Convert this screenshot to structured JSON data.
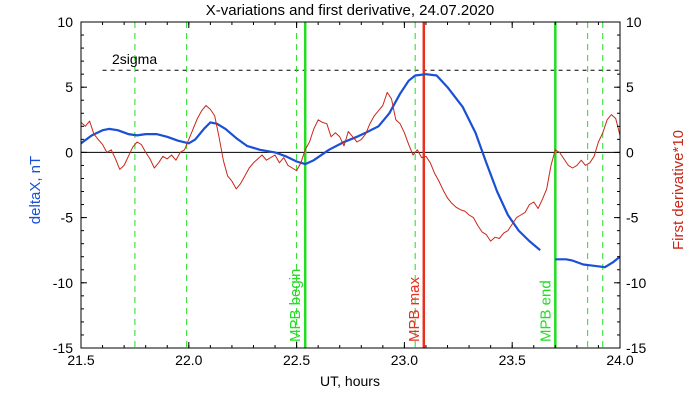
{
  "chart_data": {
    "type": "line",
    "title": "X-variations and first derivative, 24.07.2020",
    "xlabel": "UT, hours",
    "ylabel_left": "deltaX, nT",
    "ylabel_right": "First derivative*10",
    "xlim": [
      21.5,
      24.0
    ],
    "ylim": [
      -15,
      10
    ],
    "x_ticks": [
      {
        "value": 21.5,
        "label": "21.5"
      },
      {
        "value": 22.0,
        "label": "22.0"
      },
      {
        "value": 22.5,
        "label": "22.5"
      },
      {
        "value": 23.0,
        "label": "23.0"
      },
      {
        "value": 23.5,
        "label": "23.5"
      },
      {
        "value": 24.0,
        "label": "24.0"
      }
    ],
    "y_ticks": [
      {
        "value": 10,
        "label": "10"
      },
      {
        "value": 5,
        "label": "5"
      },
      {
        "value": 0,
        "label": "0"
      },
      {
        "value": -5,
        "label": "-5"
      },
      {
        "value": -10,
        "label": "-10"
      },
      {
        "value": -15,
        "label": "-15"
      }
    ],
    "sigma_line": {
      "label": "2sigma",
      "value": 6.3,
      "x_start": 21.6
    },
    "zero_line": 0,
    "vertical_markers": [
      {
        "x": 22.54,
        "label": "MPB begin",
        "color": "#22dd22"
      },
      {
        "x": 23.09,
        "label": "MPB max",
        "color": "#e8301e"
      },
      {
        "x": 23.7,
        "label": "MPB end",
        "color": "#22dd22"
      }
    ],
    "dashed_verticals": [
      21.75,
      21.99,
      22.5,
      23.05,
      23.85,
      23.92
    ],
    "colors": {
      "deltaX": "#1a4fd6",
      "derivative": "#c8281a",
      "green": "#22dd22",
      "red": "#e8301e"
    },
    "series": [
      {
        "color": "#1a4fd6",
        "segments": [
          [
            [
              21.5,
              0.7
            ],
            [
              21.55,
              1.3
            ],
            [
              21.6,
              1.7
            ],
            [
              21.63,
              1.8
            ],
            [
              21.67,
              1.7
            ],
            [
              21.72,
              1.4
            ],
            [
              21.76,
              1.3
            ],
            [
              21.8,
              1.4
            ],
            [
              21.85,
              1.4
            ],
            [
              21.9,
              1.2
            ],
            [
              21.95,
              0.9
            ],
            [
              22.0,
              0.7
            ],
            [
              22.03,
              1.0
            ],
            [
              22.07,
              1.8
            ],
            [
              22.1,
              2.3
            ],
            [
              22.13,
              2.2
            ],
            [
              22.17,
              1.8
            ],
            [
              22.22,
              1.1
            ],
            [
              22.27,
              0.5
            ],
            [
              22.33,
              0.2
            ],
            [
              22.4,
              0.0
            ],
            [
              22.45,
              -0.3
            ],
            [
              22.5,
              -0.7
            ],
            [
              22.54,
              -0.9
            ],
            [
              22.58,
              -0.6
            ],
            [
              22.65,
              0.2
            ],
            [
              22.72,
              0.8
            ],
            [
              22.78,
              1.2
            ],
            [
              22.82,
              1.5
            ],
            [
              22.88,
              2.0
            ],
            [
              22.93,
              3.0
            ],
            [
              22.98,
              4.5
            ],
            [
              23.02,
              5.5
            ],
            [
              23.05,
              5.9
            ],
            [
              23.1,
              6.0
            ],
            [
              23.15,
              5.9
            ],
            [
              23.2,
              5.0
            ],
            [
              23.27,
              3.5
            ],
            [
              23.33,
              1.5
            ],
            [
              23.38,
              -0.8
            ],
            [
              23.43,
              -3.0
            ],
            [
              23.48,
              -4.8
            ],
            [
              23.53,
              -6.0
            ],
            [
              23.58,
              -6.8
            ],
            [
              23.63,
              -7.5
            ]
          ],
          [
            [
              23.7,
              -8.2
            ],
            [
              23.75,
              -8.2
            ],
            [
              23.78,
              -8.3
            ],
            [
              23.83,
              -8.6
            ],
            [
              23.88,
              -8.7
            ],
            [
              23.93,
              -8.8
            ],
            [
              23.97,
              -8.4
            ],
            [
              24.0,
              -8.0
            ]
          ]
        ]
      },
      {
        "color": "#c8281a",
        "segments": [
          [
            [
              21.5,
              2.3
            ],
            [
              21.52,
              2.0
            ],
            [
              21.54,
              2.4
            ],
            [
              21.56,
              1.4
            ],
            [
              21.58,
              1.0
            ],
            [
              21.6,
              0.6
            ],
            [
              21.62,
              0.0
            ],
            [
              21.64,
              0.2
            ],
            [
              21.66,
              -0.5
            ],
            [
              21.68,
              -1.3
            ],
            [
              21.7,
              -1.0
            ],
            [
              21.72,
              -0.3
            ],
            [
              21.74,
              0.4
            ],
            [
              21.76,
              0.8
            ],
            [
              21.78,
              0.6
            ],
            [
              21.8,
              0.0
            ],
            [
              21.82,
              -0.5
            ],
            [
              21.84,
              -1.2
            ],
            [
              21.86,
              -0.8
            ],
            [
              21.88,
              -0.3
            ],
            [
              21.9,
              -0.5
            ],
            [
              21.92,
              -0.2
            ],
            [
              21.94,
              -0.6
            ],
            [
              21.96,
              0.0
            ],
            [
              21.98,
              0.2
            ],
            [
              22.0,
              1.0
            ],
            [
              22.02,
              1.8
            ],
            [
              22.04,
              2.6
            ],
            [
              22.06,
              3.2
            ],
            [
              22.08,
              3.6
            ],
            [
              22.1,
              3.3
            ],
            [
              22.12,
              2.8
            ],
            [
              22.14,
              1.2
            ],
            [
              22.16,
              -0.6
            ],
            [
              22.18,
              -1.8
            ],
            [
              22.2,
              -2.2
            ],
            [
              22.22,
              -2.8
            ],
            [
              22.24,
              -2.4
            ],
            [
              22.26,
              -1.8
            ],
            [
              22.28,
              -1.2
            ],
            [
              22.3,
              -0.8
            ],
            [
              22.32,
              -0.5
            ],
            [
              22.34,
              -0.2
            ],
            [
              22.36,
              -0.6
            ],
            [
              22.38,
              -0.4
            ],
            [
              22.4,
              -0.2
            ],
            [
              22.42,
              -0.8
            ],
            [
              22.44,
              -0.4
            ],
            [
              22.46,
              -1.0
            ],
            [
              22.48,
              -1.2
            ],
            [
              22.5,
              -1.4
            ],
            [
              22.52,
              -0.8
            ],
            [
              22.54,
              0.2
            ],
            [
              22.56,
              0.8
            ],
            [
              22.58,
              1.8
            ],
            [
              22.6,
              2.5
            ],
            [
              22.62,
              2.3
            ],
            [
              22.64,
              2.2
            ],
            [
              22.66,
              1.2
            ],
            [
              22.68,
              1.5
            ],
            [
              22.7,
              1.2
            ],
            [
              22.72,
              0.5
            ],
            [
              22.74,
              1.6
            ],
            [
              22.76,
              1.2
            ],
            [
              22.78,
              0.8
            ],
            [
              22.8,
              1.0
            ],
            [
              22.82,
              1.4
            ],
            [
              22.84,
              2.2
            ],
            [
              22.86,
              2.8
            ],
            [
              22.88,
              3.2
            ],
            [
              22.9,
              3.6
            ],
            [
              22.92,
              4.6
            ],
            [
              22.94,
              4.1
            ],
            [
              22.96,
              2.5
            ],
            [
              22.98,
              2.2
            ],
            [
              23.0,
              1.5
            ],
            [
              23.02,
              0.6
            ],
            [
              23.04,
              -0.2
            ],
            [
              23.06,
              0.2
            ],
            [
              23.08,
              -0.4
            ],
            [
              23.1,
              -0.3
            ],
            [
              23.12,
              -0.8
            ],
            [
              23.14,
              -1.6
            ],
            [
              23.16,
              -2.2
            ],
            [
              23.18,
              -2.9
            ],
            [
              23.2,
              -3.5
            ],
            [
              23.22,
              -3.9
            ],
            [
              23.24,
              -4.2
            ],
            [
              23.26,
              -4.4
            ],
            [
              23.28,
              -4.5
            ],
            [
              23.3,
              -4.8
            ],
            [
              23.32,
              -5.0
            ],
            [
              23.34,
              -5.6
            ],
            [
              23.36,
              -6.1
            ],
            [
              23.38,
              -6.3
            ],
            [
              23.4,
              -6.8
            ],
            [
              23.42,
              -6.5
            ],
            [
              23.44,
              -6.6
            ],
            [
              23.46,
              -6.2
            ],
            [
              23.48,
              -6.0
            ],
            [
              23.5,
              -5.5
            ],
            [
              23.52,
              -5.0
            ],
            [
              23.54,
              -4.8
            ],
            [
              23.56,
              -4.6
            ],
            [
              23.58,
              -4.0
            ],
            [
              23.6,
              -3.8
            ],
            [
              23.62,
              -4.3
            ],
            [
              23.64,
              -3.6
            ],
            [
              23.66,
              -2.8
            ],
            [
              23.68,
              -1.0
            ],
            [
              23.7,
              0.2
            ],
            [
              23.72,
              0.0
            ],
            [
              23.74,
              -0.5
            ],
            [
              23.76,
              -1.0
            ],
            [
              23.78,
              -1.2
            ],
            [
              23.8,
              -1.0
            ],
            [
              23.82,
              -0.6
            ],
            [
              23.84,
              -1.0
            ],
            [
              23.86,
              -0.8
            ],
            [
              23.88,
              -0.3
            ],
            [
              23.9,
              0.8
            ],
            [
              23.92,
              1.5
            ],
            [
              23.94,
              2.5
            ],
            [
              23.96,
              2.9
            ],
            [
              23.98,
              2.6
            ],
            [
              24.0,
              1.3
            ]
          ]
        ]
      }
    ]
  }
}
